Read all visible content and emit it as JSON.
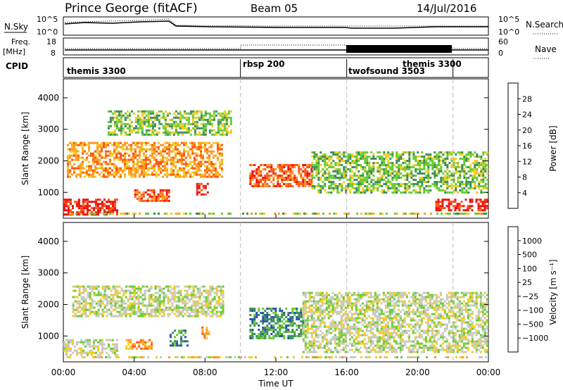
{
  "header": {
    "station": "Prince George (fitACF)",
    "beam": "Beam 05",
    "date": "14/Jul/2016"
  },
  "top_panels": {
    "nsky_label": "N.Sky",
    "nsky_ticks": [
      "10^5",
      "10^0"
    ],
    "nsearch_label": "N.Search",
    "freq_label_line1": "Freq.",
    "freq_label_line2": "[MHz]",
    "freq_ticks": [
      "18",
      "8"
    ],
    "nave_label": "Nave",
    "nave_ticks": [
      "60",
      "0"
    ],
    "cpid_label": "CPID",
    "cpid_segments": [
      {
        "name": "themis 3300",
        "start_h": 0
      },
      {
        "name": "rbsp 200",
        "start_h": 10
      },
      {
        "name": "twofsound 3503",
        "start_h": 16
      },
      {
        "name": "themis 3300",
        "start_h": 22
      }
    ]
  },
  "chart_data": [
    {
      "type": "heatmap",
      "panel": "power",
      "title": "",
      "xlabel": "",
      "ylabel": "Slant Range [km]",
      "xlim": [
        0,
        24
      ],
      "ylim": [
        180,
        4600
      ],
      "yticks": [
        "4000",
        "3000",
        "2000",
        "1000"
      ],
      "colorbar_label": "Power [dB]",
      "colorbar_ticks": [
        "28",
        "24",
        "20",
        "16",
        "12",
        "8",
        "4"
      ],
      "colors": [
        "#0000ff",
        "#2c4fa8",
        "#3d8c5a",
        "#66cc33",
        "#f2cc22",
        "#ff9922",
        "#ff5511",
        "#ee1111"
      ],
      "echo_regions": [
        {
          "x": [
            0.0,
            3.0
          ],
          "range": [
            300,
            800
          ],
          "level": 7
        },
        {
          "x": [
            0.2,
            9.0
          ],
          "range": [
            1500,
            2600
          ],
          "level": 5
        },
        {
          "x": [
            2.5,
            9.5
          ],
          "range": [
            2800,
            3600
          ],
          "level": 3
        },
        {
          "x": [
            4.0,
            6.0
          ],
          "range": [
            700,
            1100
          ],
          "level": 6
        },
        {
          "x": [
            7.5,
            8.2
          ],
          "range": [
            900,
            1300
          ],
          "level": 7
        },
        {
          "x": [
            10.5,
            14.0
          ],
          "range": [
            1200,
            1900
          ],
          "level": 6
        },
        {
          "x": [
            14.0,
            24.0
          ],
          "range": [
            1000,
            2300
          ],
          "level": 3
        },
        {
          "x": [
            21.0,
            24.0
          ],
          "range": [
            400,
            800
          ],
          "level": 7
        }
      ]
    },
    {
      "type": "heatmap",
      "panel": "velocity",
      "title": "",
      "xlabel": "Time UT",
      "ylabel": "Slant Range [km]",
      "xlim": [
        0,
        24
      ],
      "ylim": [
        180,
        4600
      ],
      "xticks": [
        "00:00",
        "04:00",
        "08:00",
        "12:00",
        "16:00",
        "20:00",
        "00:00"
      ],
      "yticks": [
        "4000",
        "3000",
        "2000",
        "1000"
      ],
      "colorbar_label": "Velocity [m s⁻¹]",
      "colorbar_ticks": [
        "1000",
        "500",
        "100",
        "25",
        "−25",
        "−100",
        "−500",
        "−1000"
      ],
      "colors": [
        "#2a4fb0",
        "#3a8f5a",
        "#66cc33",
        "#c8c8c0",
        "#f2cc22",
        "#ff9922",
        "#ff5511",
        "#ee1111"
      ],
      "echo_regions": [
        {
          "x": [
            0.0,
            3.0
          ],
          "range": [
            400,
            900
          ],
          "level": 3
        },
        {
          "x": [
            0.5,
            9.0
          ],
          "range": [
            1600,
            2600
          ],
          "level": 3
        },
        {
          "x": [
            3.5,
            5.0
          ],
          "range": [
            600,
            900
          ],
          "level": 5
        },
        {
          "x": [
            6.0,
            7.0
          ],
          "range": [
            700,
            1200
          ],
          "level": 1
        },
        {
          "x": [
            7.8,
            8.2
          ],
          "range": [
            900,
            1300
          ],
          "level": 5
        },
        {
          "x": [
            10.5,
            13.5
          ],
          "range": [
            900,
            1900
          ],
          "level": 1
        },
        {
          "x": [
            13.5,
            24.0
          ],
          "range": [
            500,
            2400
          ],
          "level": 3
        }
      ]
    }
  ]
}
